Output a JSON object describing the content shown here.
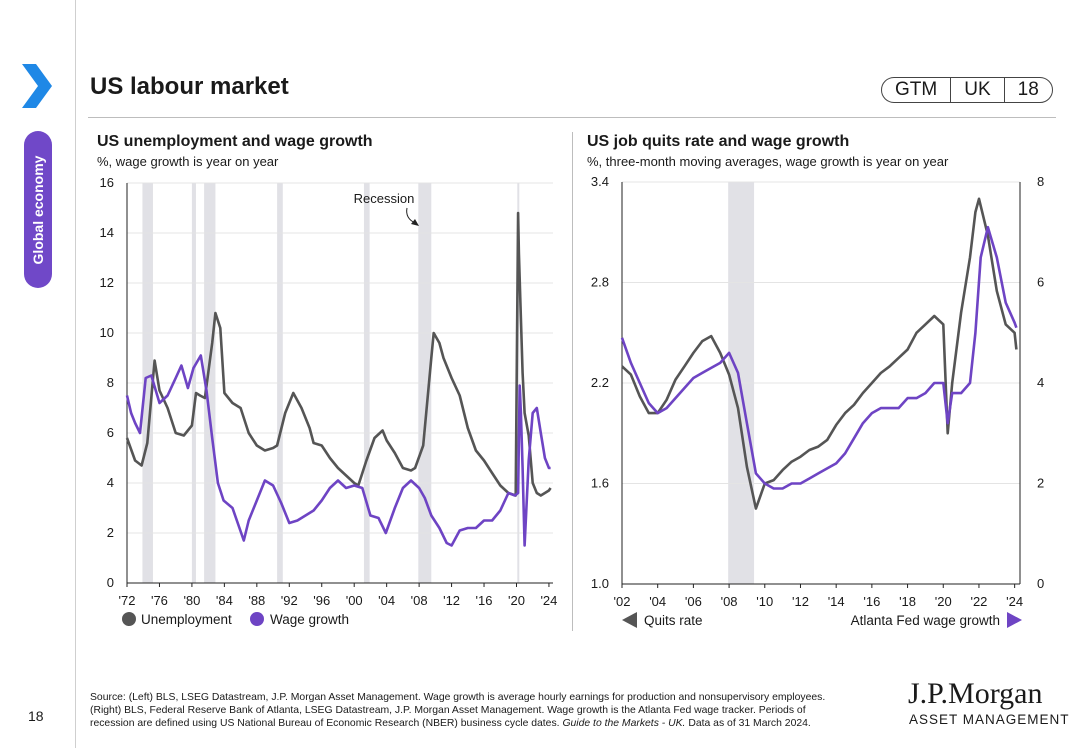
{
  "header": {
    "title": "US labour market",
    "badge": [
      "GTM",
      "UK",
      "18"
    ]
  },
  "sidebar": {
    "section": "Global economy",
    "page_number": "18"
  },
  "colors": {
    "accent": "#7048c8",
    "unemployment": "#555555",
    "wage": "#6e44c4",
    "recession": "#e1e1e6"
  },
  "source": {
    "line1": "Source: (Left) BLS, LSEG Datastream, J.P. Morgan Asset Management. Wage growth is average hourly earnings for production and nonsupervisory employees.",
    "line2": "(Right) BLS, Federal Reserve Bank of Atlanta, LSEG Datastream, J.P. Morgan Asset Management. Wage growth is the Atlanta Fed wage tracker. Periods of",
    "line3a": "recession are defined using US National Bureau of Economic Research (NBER) business cycle dates. ",
    "line3b": "Guide to the Markets - UK.",
    "line3c": " Data as of 31 March 2024."
  },
  "logo": {
    "brand": "J.P.Morgan",
    "sub": "ASSET MANAGEMENT"
  },
  "chart_data": [
    {
      "type": "line",
      "title": "US unemployment and wage growth",
      "subtitle": "%, wage growth is year on year",
      "xlim": [
        1972,
        2024.5
      ],
      "ylim": [
        0,
        16
      ],
      "yticks": [
        0,
        2,
        4,
        6,
        8,
        10,
        12,
        14,
        16
      ],
      "xticks": [
        1972,
        1976,
        1980,
        1984,
        1988,
        1992,
        1996,
        2000,
        2004,
        2008,
        2012,
        2016,
        2020,
        2024
      ],
      "xtick_labels": [
        "'72",
        "'76",
        "'80",
        "'84",
        "'88",
        "'92",
        "'96",
        "'00",
        "'04",
        "'08",
        "'12",
        "'16",
        "'20",
        "'24"
      ],
      "recessions": [
        [
          1973.9,
          1975.2
        ],
        [
          1980.0,
          1980.5
        ],
        [
          1981.5,
          1982.9
        ],
        [
          1990.5,
          1991.2
        ],
        [
          2001.2,
          2001.9
        ],
        [
          2007.9,
          2009.5
        ],
        [
          2020.1,
          2020.3
        ]
      ],
      "annotation": "Recession",
      "legend": [
        "Unemployment",
        "Wage growth"
      ],
      "series": [
        {
          "name": "Unemployment",
          "x": [
            1972,
            1973,
            1973.8,
            1974.5,
            1975.4,
            1976,
            1977,
            1978,
            1979,
            1980,
            1980.5,
            1981,
            1981.6,
            1982.5,
            1982.9,
            1983.5,
            1984,
            1985,
            1986,
            1987,
            1988,
            1989,
            1990,
            1990.5,
            1991.5,
            1992.5,
            1993.5,
            1994.5,
            1995,
            1996,
            1997,
            1998,
            1999,
            2000,
            2000.5,
            2001.5,
            2002.5,
            2003.5,
            2004,
            2005,
            2006,
            2007,
            2007.5,
            2008.5,
            2009.5,
            2009.8,
            2010.5,
            2011,
            2012,
            2013,
            2014,
            2015,
            2016,
            2017,
            2018,
            2019,
            2019.9,
            2020.2,
            2020.3,
            2020.5,
            2020.75,
            2021,
            2021.5,
            2022,
            2022.5,
            2023,
            2023.5,
            2024,
            2024.2
          ],
          "values": [
            5.8,
            4.9,
            4.7,
            5.6,
            8.9,
            7.7,
            7.0,
            6.0,
            5.9,
            6.3,
            7.6,
            7.5,
            7.4,
            9.6,
            10.8,
            10.2,
            7.6,
            7.2,
            7.0,
            6.0,
            5.5,
            5.3,
            5.4,
            5.5,
            6.8,
            7.6,
            7.0,
            6.2,
            5.6,
            5.5,
            5.0,
            4.6,
            4.3,
            4.0,
            3.9,
            4.9,
            5.8,
            6.1,
            5.7,
            5.2,
            4.6,
            4.5,
            4.6,
            5.5,
            9.0,
            10.0,
            9.6,
            9.0,
            8.2,
            7.5,
            6.2,
            5.3,
            4.9,
            4.4,
            3.9,
            3.6,
            3.5,
            14.8,
            13.2,
            11.1,
            8.4,
            6.8,
            5.9,
            4.0,
            3.6,
            3.5,
            3.6,
            3.7,
            3.8
          ]
        },
        {
          "name": "Wage growth",
          "x": [
            1972,
            1972.5,
            1973,
            1973.6,
            1974.3,
            1975,
            1976,
            1977,
            1978,
            1978.7,
            1979.5,
            1980.2,
            1981.1,
            1981.8,
            1982.5,
            1983.2,
            1983.9,
            1985,
            1986.4,
            1987,
            1988,
            1989,
            1990,
            1991,
            1992,
            1993,
            1994,
            1995,
            1996,
            1997,
            1998,
            1999,
            2000,
            2001,
            2002,
            2003,
            2003.9,
            2005,
            2006,
            2007,
            2008,
            2008.7,
            2009.5,
            2010.5,
            2011.4,
            2012,
            2013,
            2014,
            2015,
            2016,
            2017,
            2018,
            2019,
            2019.8,
            2020.2,
            2020.4,
            2020.55,
            2020.75,
            2021,
            2021.5,
            2022,
            2022.5,
            2023,
            2023.5,
            2024,
            2024.2
          ],
          "values": [
            7.5,
            6.8,
            6.4,
            6.0,
            8.2,
            8.3,
            7.2,
            7.5,
            8.2,
            8.7,
            7.8,
            8.6,
            9.1,
            7.7,
            5.8,
            4.0,
            3.3,
            3.0,
            1.7,
            2.5,
            3.3,
            4.1,
            3.9,
            3.2,
            2.4,
            2.5,
            2.7,
            2.9,
            3.3,
            3.8,
            4.1,
            3.8,
            3.9,
            3.8,
            2.7,
            2.6,
            2.0,
            3.0,
            3.8,
            4.1,
            3.8,
            3.4,
            2.7,
            2.2,
            1.6,
            1.5,
            2.1,
            2.2,
            2.2,
            2.5,
            2.5,
            2.9,
            3.6,
            3.5,
            3.6,
            7.9,
            6.8,
            4.6,
            1.5,
            4.9,
            6.8,
            7.0,
            6.0,
            5.0,
            4.6,
            4.6
          ]
        }
      ]
    },
    {
      "type": "line",
      "title": "US job quits rate and wage growth",
      "subtitle": "%, three-month moving averages, wage growth is year on year",
      "xlim": [
        2002,
        2024.3
      ],
      "ylim_left": [
        1.0,
        3.4
      ],
      "yticks_left": [
        1.0,
        1.6,
        2.2,
        2.8,
        3.4
      ],
      "ytick_labels_left": [
        "1.0",
        "1.6",
        "2.2",
        "2.8",
        "3.4"
      ],
      "ylim_right": [
        0,
        8
      ],
      "yticks_right": [
        0,
        2,
        4,
        6,
        8
      ],
      "xticks": [
        2002,
        2004,
        2006,
        2008,
        2010,
        2012,
        2014,
        2016,
        2018,
        2020,
        2022,
        2024
      ],
      "xtick_labels": [
        "'02",
        "'04",
        "'06",
        "'08",
        "'10",
        "'12",
        "'14",
        "'16",
        "'18",
        "'20",
        "'22",
        "'24"
      ],
      "recessions": [
        [
          2007.95,
          2009.4
        ]
      ],
      "legend": [
        "Quits rate",
        "Atlanta Fed wage growth"
      ],
      "series": [
        {
          "name": "Quits rate",
          "axis": "left",
          "x": [
            2002,
            2002.5,
            2003,
            2003.5,
            2004,
            2004.5,
            2005,
            2005.5,
            2006,
            2006.5,
            2007,
            2007.5,
            2008,
            2008.5,
            2009,
            2009.5,
            2010,
            2010.5,
            2011,
            2011.5,
            2012,
            2012.5,
            2013,
            2013.5,
            2014,
            2014.5,
            2015,
            2015.5,
            2016,
            2016.5,
            2017,
            2017.5,
            2018,
            2018.5,
            2019,
            2019.5,
            2020,
            2020.25,
            2020.5,
            2021,
            2021.5,
            2021.8,
            2022,
            2022.5,
            2023,
            2023.5,
            2024,
            2024.1
          ],
          "values": [
            2.3,
            2.25,
            2.12,
            2.02,
            2.02,
            2.1,
            2.22,
            2.3,
            2.38,
            2.45,
            2.48,
            2.38,
            2.25,
            2.05,
            1.7,
            1.45,
            1.6,
            1.62,
            1.68,
            1.73,
            1.76,
            1.8,
            1.82,
            1.86,
            1.95,
            2.02,
            2.07,
            2.14,
            2.2,
            2.26,
            2.3,
            2.35,
            2.4,
            2.5,
            2.55,
            2.6,
            2.55,
            1.9,
            2.2,
            2.62,
            2.95,
            3.22,
            3.3,
            3.08,
            2.75,
            2.55,
            2.5,
            2.4
          ]
        },
        {
          "name": "Atlanta Fed wage growth",
          "axis": "right",
          "x": [
            2002,
            2002.5,
            2003,
            2003.5,
            2004,
            2004.5,
            2005,
            2005.5,
            2006,
            2006.5,
            2007,
            2007.5,
            2008,
            2008.5,
            2009,
            2009.5,
            2010,
            2010.5,
            2011,
            2011.5,
            2012,
            2012.5,
            2013,
            2013.5,
            2014,
            2014.5,
            2015,
            2015.5,
            2016,
            2016.5,
            2017,
            2017.5,
            2018,
            2018.5,
            2019,
            2019.5,
            2020,
            2020.25,
            2020.5,
            2021,
            2021.5,
            2021.8,
            2022.1,
            2022.5,
            2023,
            2023.5,
            2024,
            2024.1
          ],
          "values": [
            4.9,
            4.4,
            4.0,
            3.6,
            3.4,
            3.5,
            3.7,
            3.9,
            4.1,
            4.2,
            4.3,
            4.4,
            4.6,
            4.2,
            3.2,
            2.2,
            2.0,
            1.9,
            1.9,
            2.0,
            2.0,
            2.1,
            2.2,
            2.3,
            2.4,
            2.6,
            2.9,
            3.2,
            3.4,
            3.5,
            3.5,
            3.5,
            3.7,
            3.7,
            3.8,
            4.0,
            4.0,
            3.2,
            3.8,
            3.8,
            4.0,
            5.0,
            6.5,
            7.1,
            6.5,
            5.6,
            5.2,
            5.1
          ]
        }
      ]
    }
  ]
}
